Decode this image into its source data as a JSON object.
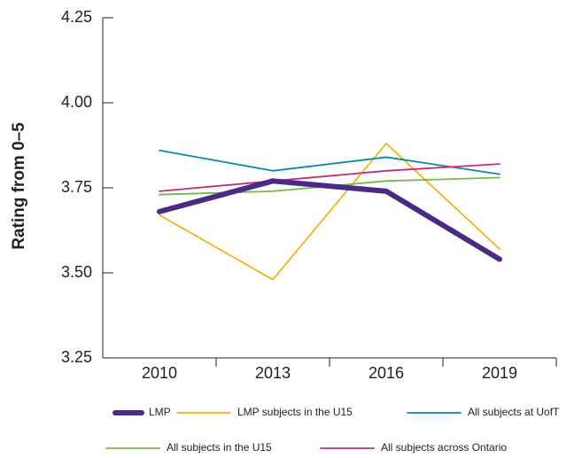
{
  "chart_data": {
    "type": "line",
    "y_label": "Rating from 0–5",
    "categories": [
      "2010",
      "2013",
      "2016",
      "2019"
    ],
    "ylim": [
      3.25,
      4.25
    ],
    "yticks": [
      3.25,
      {
        "value": 3.5,
        "label": "3.50"
      },
      3.75,
      {
        "value": 4,
        "label": "4.00"
      },
      4.25
    ],
    "series": [
      {
        "name": "LMP subjects in the U15",
        "color": "#f5b31a",
        "values": [
          3.67,
          3.48,
          3.88,
          3.57
        ]
      },
      {
        "name": "All subjects at UofT",
        "color": "#0e88a8",
        "values": [
          3.86,
          3.8,
          3.84,
          3.79
        ]
      },
      {
        "name": "All subjects in the U15",
        "color": "#7ab648",
        "values": [
          3.73,
          3.74,
          3.77,
          3.78
        ]
      },
      {
        "name": "All subjects across Ontario",
        "color": "#c0307a",
        "values": [
          3.74,
          3.77,
          3.8,
          3.82
        ]
      },
      {
        "name": "LMP",
        "color": "#4b2a85",
        "values": [
          3.68,
          3.77,
          3.74,
          3.54
        ]
      }
    ]
  }
}
